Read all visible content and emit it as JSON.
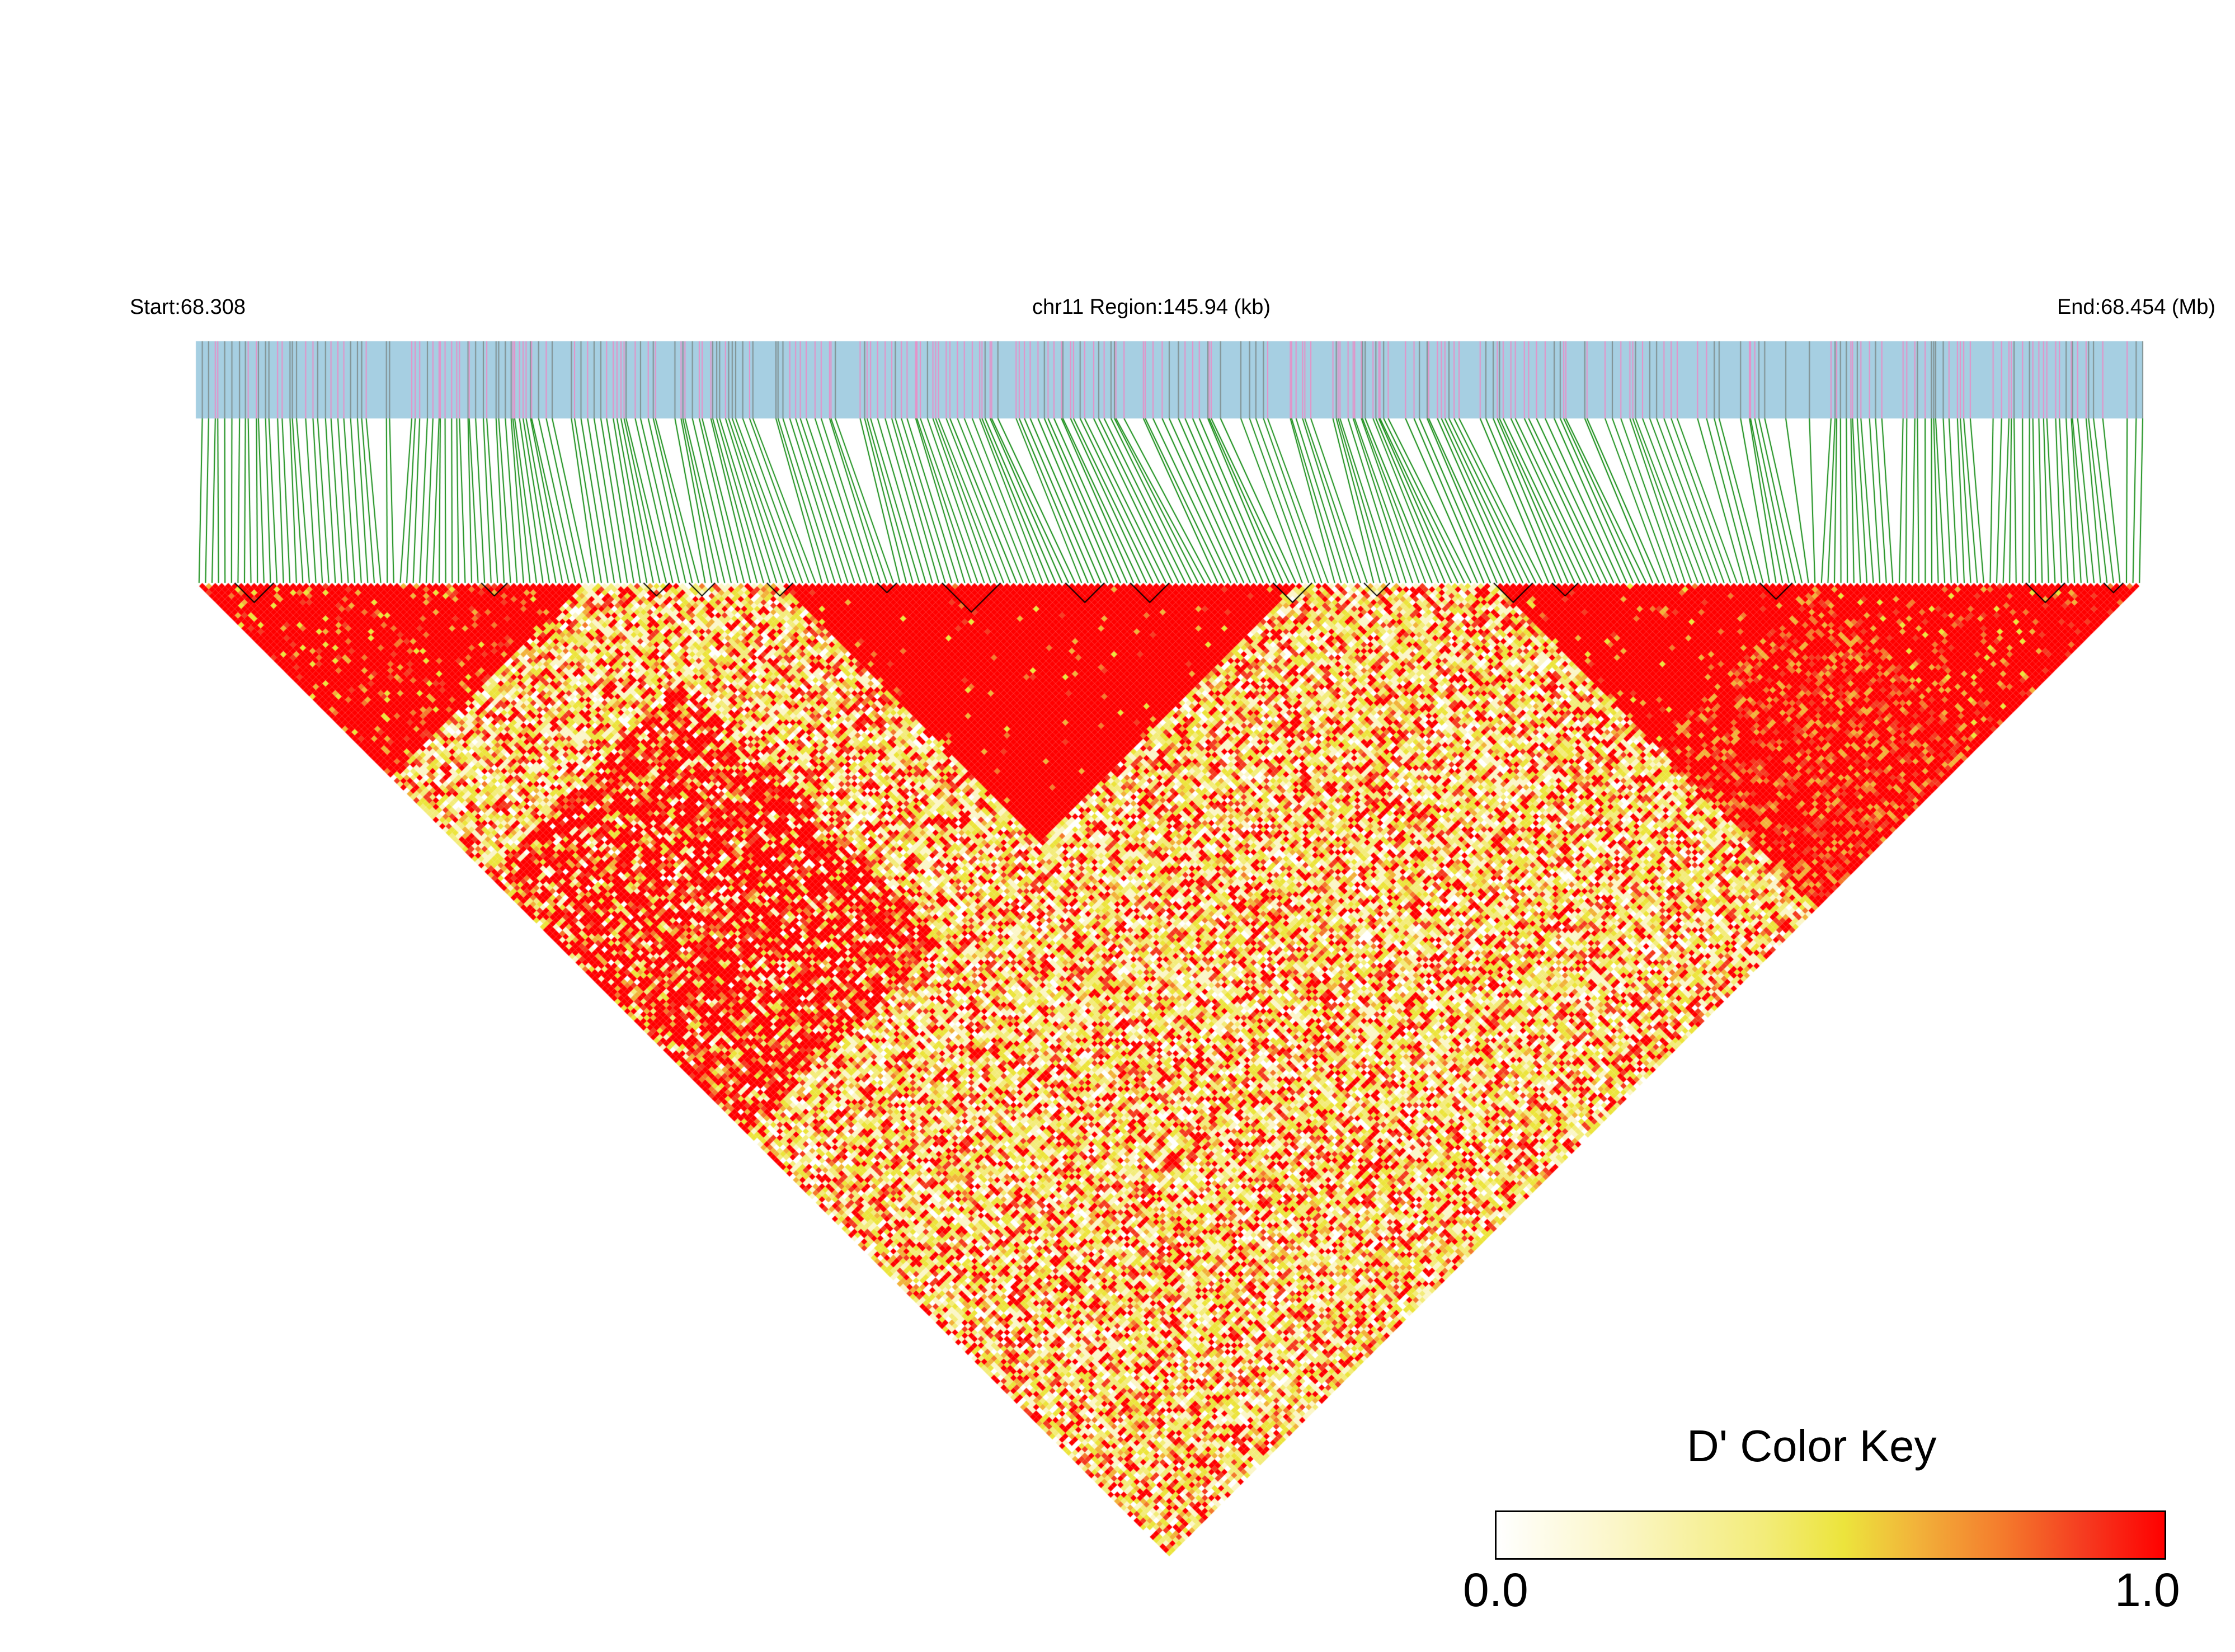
{
  "header": {
    "start_label": "Start:68.308",
    "region_title": "chr11 Region:145.94 (kb)",
    "end_label": "End:68.454 (Mb)"
  },
  "legend": {
    "title": "D' Color Key",
    "min_label": "0.0",
    "max_label": "1.0",
    "colors": [
      "#ffffff",
      "#fbf6c8",
      "#f3ec7a",
      "#ece43c",
      "#f2b23a",
      "#f47a2c",
      "#f53b20",
      "#ff0000"
    ]
  },
  "track": {
    "bar_color": "#a6cfe2",
    "snp_marker_colors": [
      "#e88fc7",
      "#7f8f8f"
    ],
    "connector_color": "#118a11"
  },
  "heatmap": {
    "block_outline_color": "#000000"
  }
}
